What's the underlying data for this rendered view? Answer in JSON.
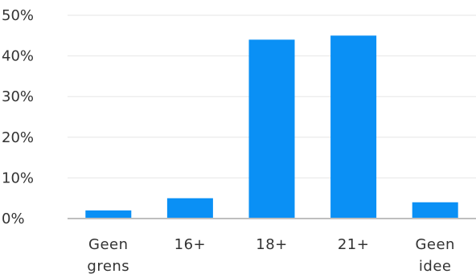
{
  "chart_data": {
    "type": "bar",
    "categories": [
      "Geen grens",
      "16+",
      "18+",
      "21+",
      "Geen idee"
    ],
    "category_lines": [
      [
        "Geen",
        "grens"
      ],
      [
        "16+"
      ],
      [
        "18+"
      ],
      [
        "21+"
      ],
      [
        "Geen",
        "idee"
      ]
    ],
    "values": [
      2,
      5,
      44,
      45,
      4
    ],
    "value_unit": "%",
    "yticks": [
      "0%",
      "10%",
      "20%",
      "30%",
      "40%",
      "50%"
    ],
    "ylim": [
      0,
      50
    ],
    "title": "",
    "xlabel": "",
    "ylabel": "",
    "grid": true,
    "legend": "none",
    "colors": {
      "bar": "#0a90f5",
      "grid": "#e6e6e6",
      "axis": "#bfbfbf",
      "text": "#333333"
    }
  }
}
